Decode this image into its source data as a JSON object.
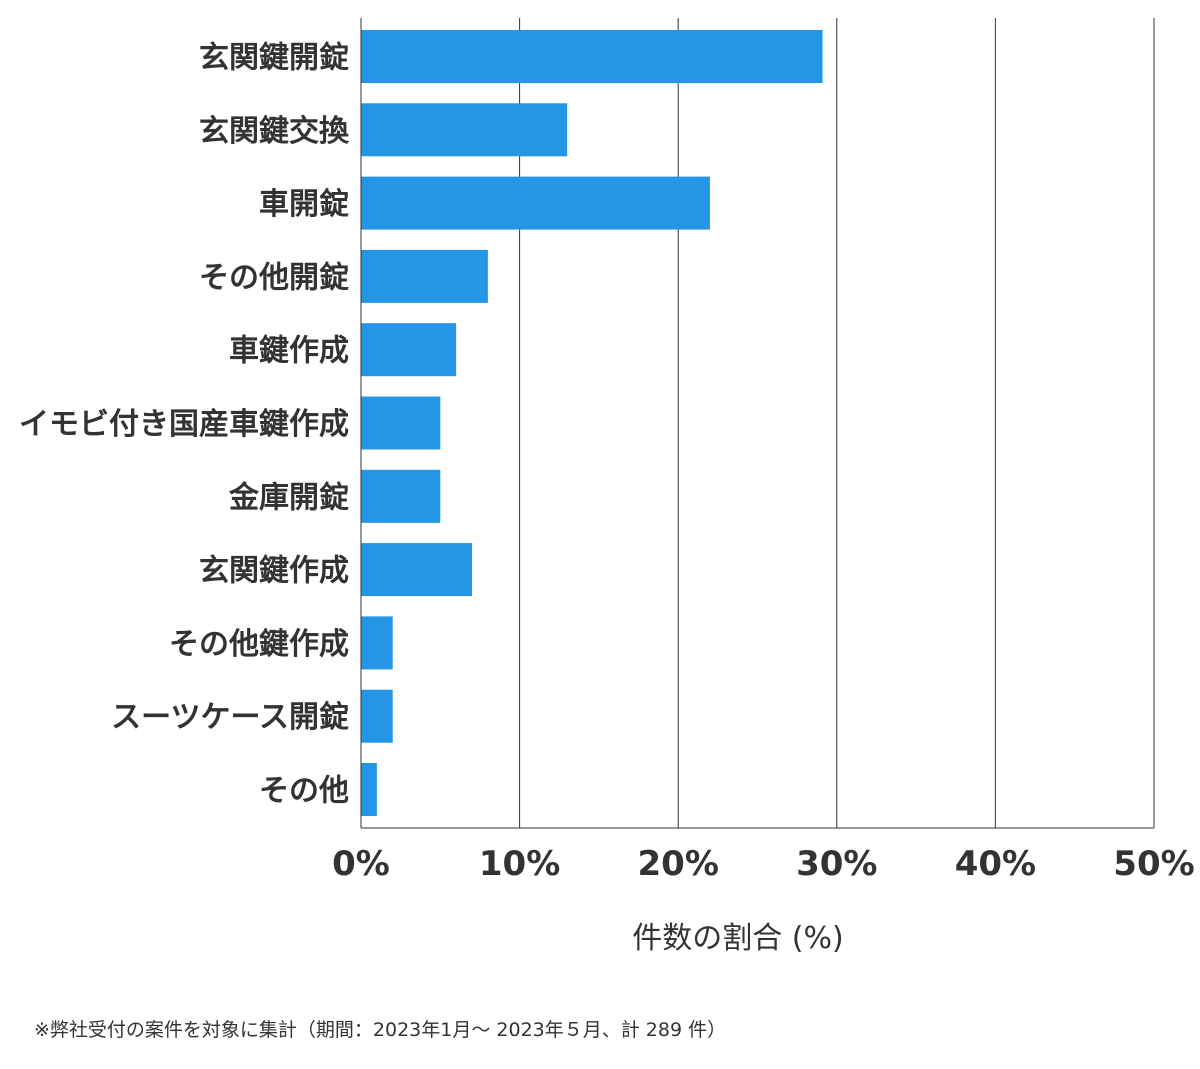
{
  "chart_data": {
    "type": "bar",
    "orientation": "horizontal",
    "categories": [
      "玄関鍵開錠",
      "玄関鍵交換",
      "車開錠",
      "その他開錠",
      "車鍵作成",
      "イモビ付き国産車鍵作成",
      "金庫開錠",
      "玄関鍵作成",
      "その他鍵作成",
      "スーツケース開錠",
      "その他"
    ],
    "values": [
      29.1,
      13.0,
      22.0,
      8.0,
      6.0,
      5.0,
      5.0,
      7.0,
      2.0,
      2.0,
      1.0
    ],
    "xlim": [
      0,
      50
    ],
    "xticks": [
      0,
      10,
      20,
      30,
      40,
      50
    ],
    "tick_labels": [
      "0%",
      "10%",
      "20%",
      "30%",
      "40%",
      "50%"
    ],
    "xlabel": "件数の割合 (%)",
    "grid": "vertical",
    "bar_color": "#2595e6"
  },
  "footnote": "※弊社受付の案件を対象に集計（期間：2023年1月～ 2023年５月、計 289 件）"
}
